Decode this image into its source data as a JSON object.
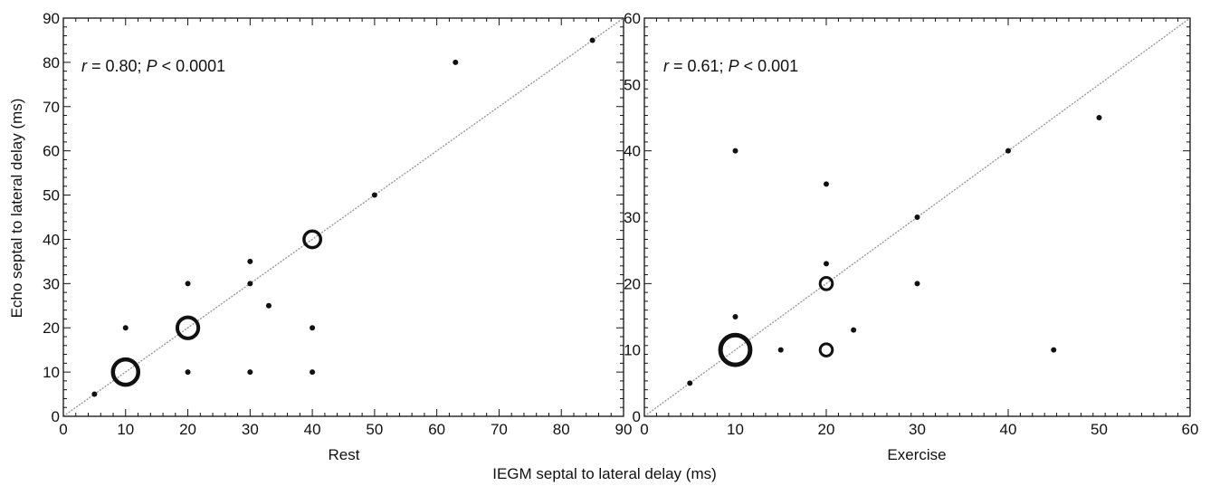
{
  "figure": {
    "shared_xlabel": "IEGM septal to lateral delay (ms)",
    "shared_ylabel": "Echo septal to lateral delay (ms)"
  },
  "chart_data": [
    {
      "type": "scatter",
      "title": "",
      "xlabel": "Rest",
      "ylabel": "Echo septal to lateral delay (ms)",
      "annotation": {
        "r_label": "r",
        "r_text": " = 0.80; ",
        "p_label": "P",
        "p_text": " < 0.0001"
      },
      "xlim": [
        0,
        90
      ],
      "ylim": [
        0,
        90
      ],
      "xticks": [
        0,
        10,
        20,
        30,
        40,
        50,
        60,
        70,
        80,
        90
      ],
      "yticks": [
        0,
        10,
        20,
        30,
        40,
        50,
        60,
        70,
        80,
        90
      ],
      "xtick_labels": [
        "0",
        "10",
        "20",
        "30",
        "40",
        "50",
        "60",
        "70",
        "80",
        "90"
      ],
      "ytick_labels": [
        "0",
        "10",
        "20",
        "30",
        "40",
        "50",
        "60",
        "70",
        "80",
        "90"
      ],
      "identity_line": true,
      "marker_note": "marker size reflects number of overlapping patients",
      "points": [
        {
          "x": 5,
          "y": 5,
          "n": 1
        },
        {
          "x": 10,
          "y": 10,
          "n": 5
        },
        {
          "x": 10,
          "y": 20,
          "n": 1
        },
        {
          "x": 20,
          "y": 20,
          "n": 4
        },
        {
          "x": 20,
          "y": 30,
          "n": 1
        },
        {
          "x": 20,
          "y": 10,
          "n": 1
        },
        {
          "x": 30,
          "y": 35,
          "n": 1
        },
        {
          "x": 30,
          "y": 30,
          "n": 1
        },
        {
          "x": 30,
          "y": 10,
          "n": 1
        },
        {
          "x": 33,
          "y": 25,
          "n": 1
        },
        {
          "x": 40,
          "y": 40,
          "n": 3
        },
        {
          "x": 40,
          "y": 20,
          "n": 1
        },
        {
          "x": 40,
          "y": 10,
          "n": 1
        },
        {
          "x": 50,
          "y": 50,
          "n": 1
        },
        {
          "x": 63,
          "y": 80,
          "n": 1
        },
        {
          "x": 85,
          "y": 85,
          "n": 1
        }
      ]
    },
    {
      "type": "scatter",
      "title": "",
      "xlabel": "Exercise",
      "ylabel": "",
      "annotation": {
        "r_label": "r",
        "r_text": " = 0.61; ",
        "p_label": "P",
        "p_text": " < 0.001"
      },
      "xlim": [
        0,
        60
      ],
      "ylim": [
        0,
        60
      ],
      "xticks": [
        0,
        10,
        20,
        30,
        40,
        50,
        60
      ],
      "yticks": [
        0,
        10,
        20,
        30,
        40,
        50,
        60
      ],
      "xtick_labels": [
        "0",
        "10",
        "20",
        "30",
        "40",
        "50",
        "60"
      ],
      "ytick_labels": [
        "0",
        "10",
        "20",
        "30",
        "40",
        "50",
        "60"
      ],
      "identity_line": true,
      "marker_note": "marker size reflects number of overlapping patients",
      "points": [
        {
          "x": 5,
          "y": 5,
          "n": 1
        },
        {
          "x": 10,
          "y": 10,
          "n": 6
        },
        {
          "x": 10,
          "y": 15,
          "n": 1
        },
        {
          "x": 10,
          "y": 40,
          "n": 1
        },
        {
          "x": 15,
          "y": 10,
          "n": 1
        },
        {
          "x": 20,
          "y": 10,
          "n": 2
        },
        {
          "x": 20,
          "y": 20,
          "n": 2
        },
        {
          "x": 20,
          "y": 23,
          "n": 1
        },
        {
          "x": 20,
          "y": 35,
          "n": 1
        },
        {
          "x": 23,
          "y": 13,
          "n": 1
        },
        {
          "x": 30,
          "y": 30,
          "n": 1
        },
        {
          "x": 30,
          "y": 20,
          "n": 1
        },
        {
          "x": 40,
          "y": 40,
          "n": 1
        },
        {
          "x": 45,
          "y": 10,
          "n": 1
        },
        {
          "x": 50,
          "y": 45,
          "n": 1
        }
      ]
    }
  ]
}
